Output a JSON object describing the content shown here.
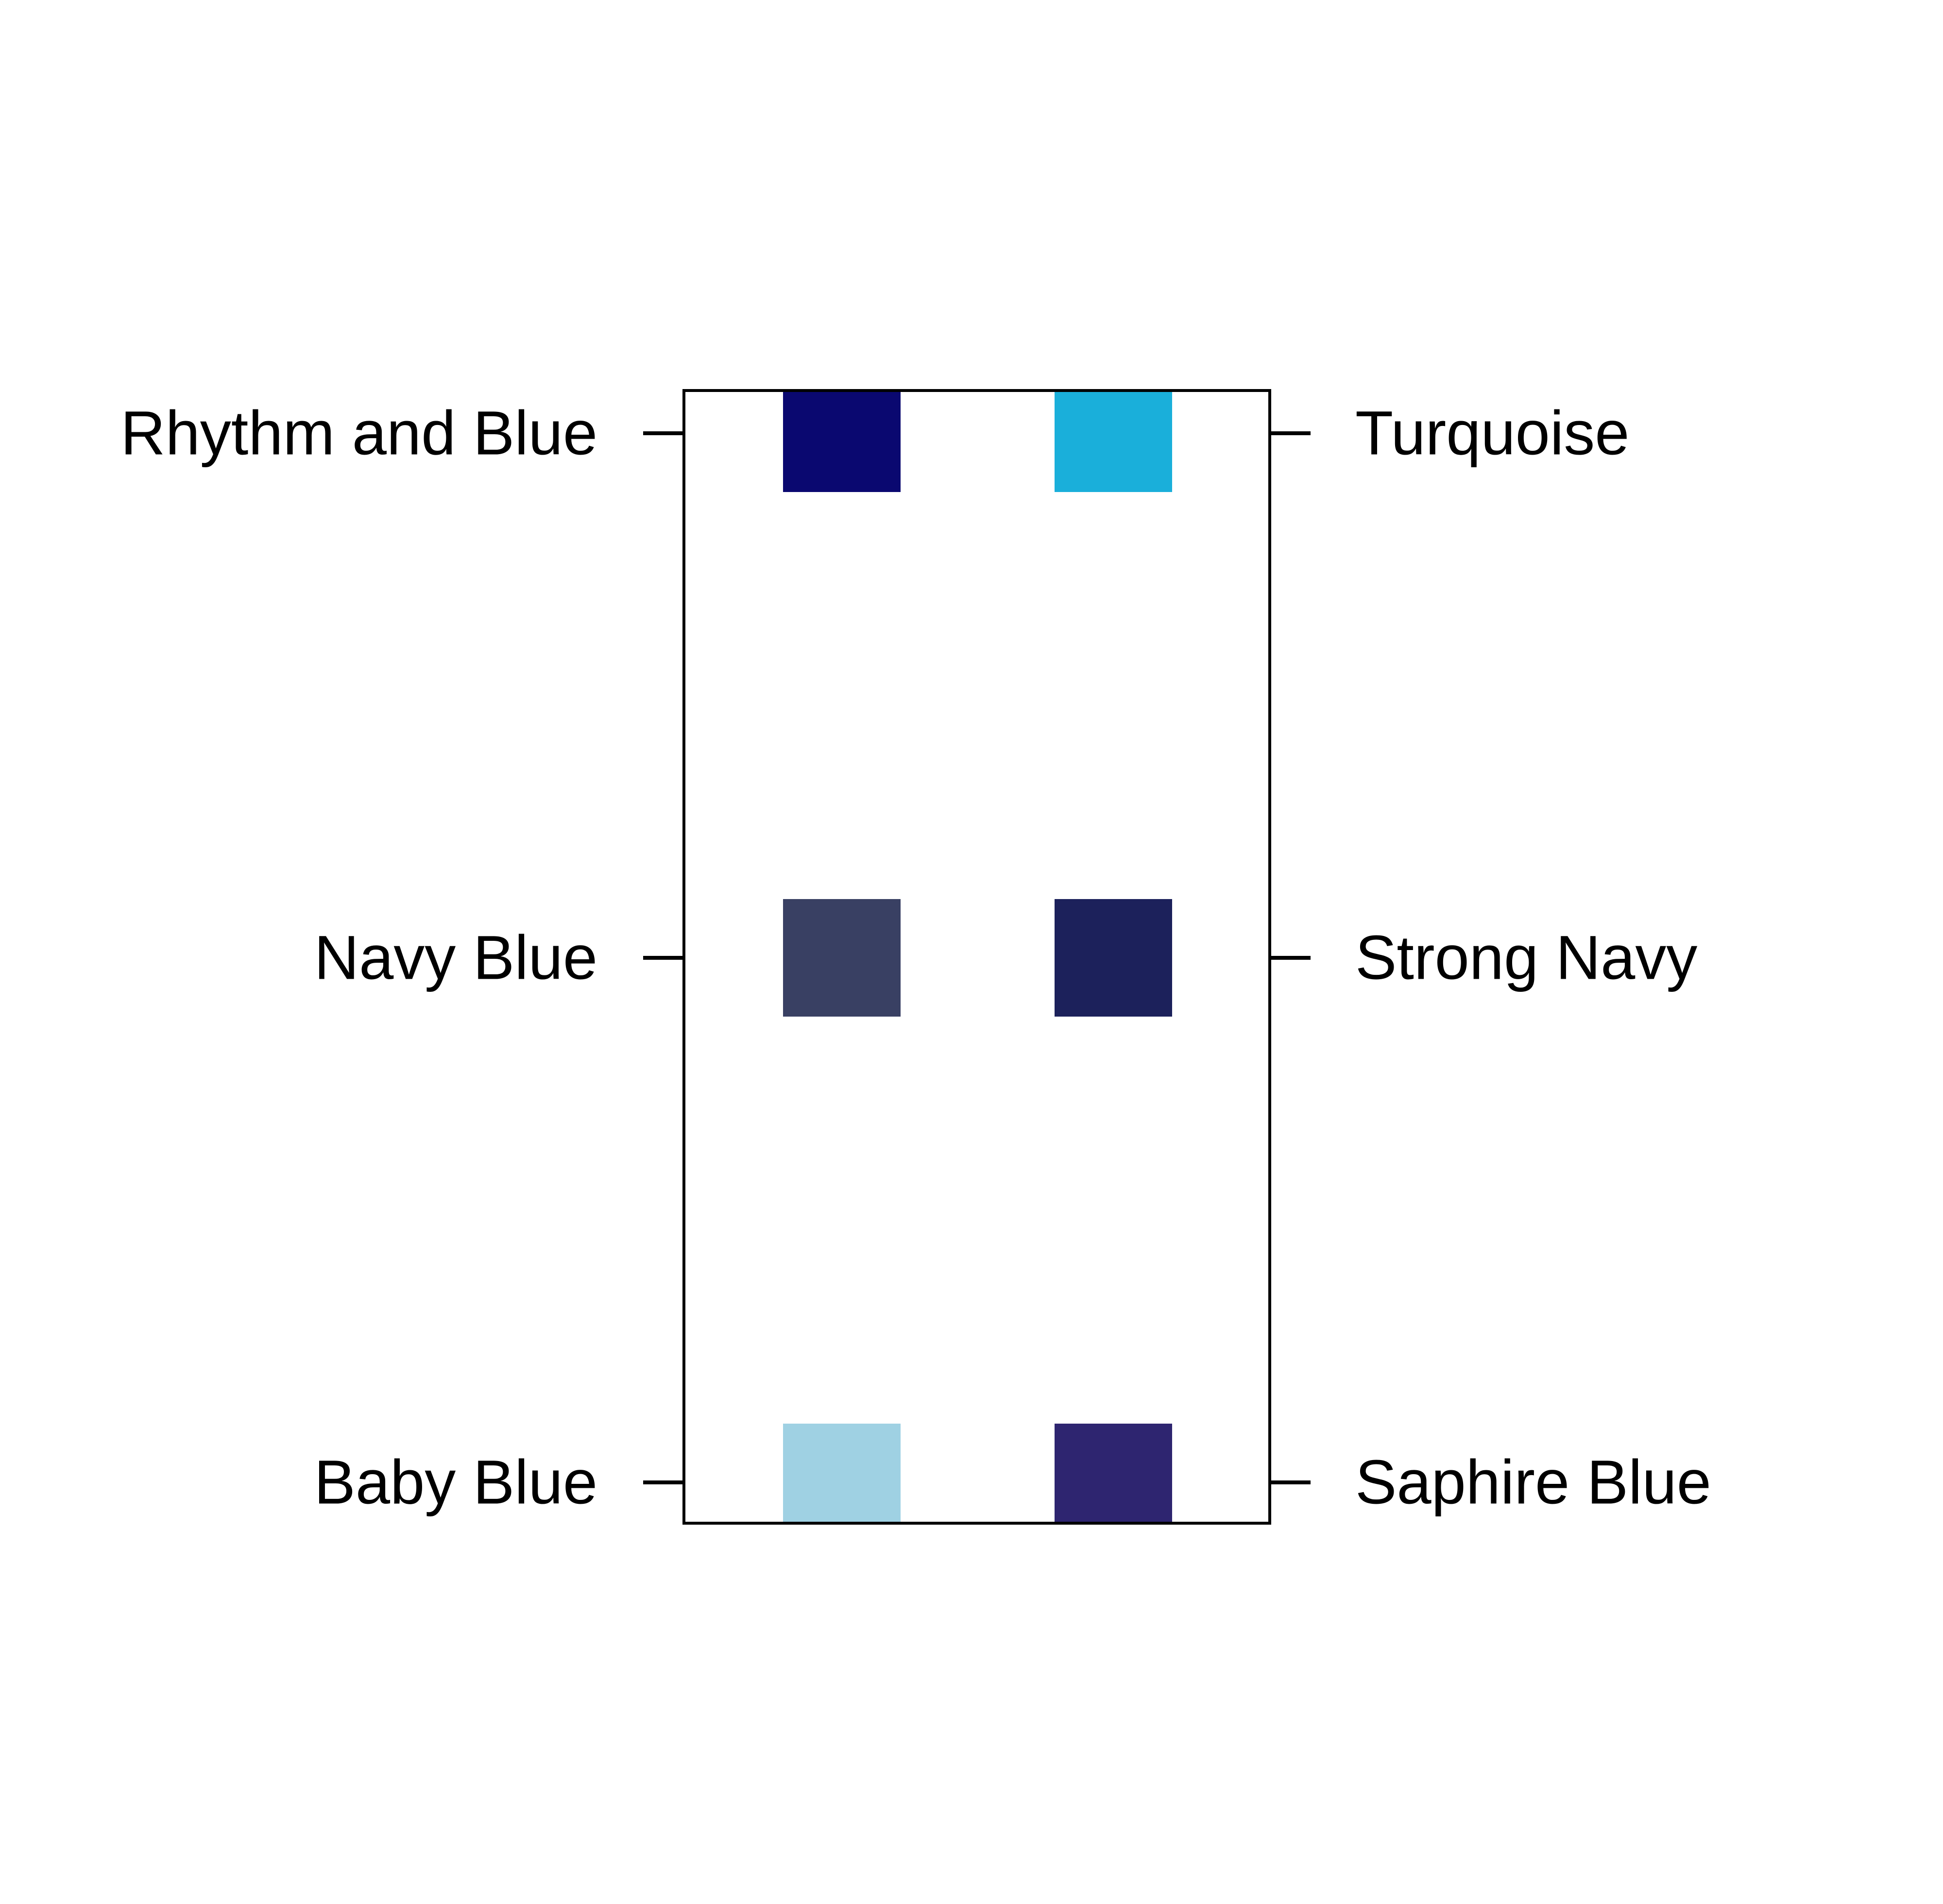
{
  "chart_data": {
    "type": "heatmap",
    "title": "",
    "xlabel": "",
    "ylabel": "",
    "columns": 2,
    "left_axis_labels": [
      "Rhythm and Blue",
      "Navy Blue",
      "Baby Blue"
    ],
    "right_axis_labels": [
      "Turquoise",
      "Strong Navy",
      "Saphire Blue"
    ],
    "cells": [
      {
        "row": 0,
        "col": 0,
        "color": "#0a0870"
      },
      {
        "row": 0,
        "col": 1,
        "color": "#1aafda"
      },
      {
        "row": 1,
        "col": 0,
        "color": "#394063"
      },
      {
        "row": 1,
        "col": 1,
        "color": "#1c215b"
      },
      {
        "row": 2,
        "col": 0,
        "color": "#9fd1e3"
      },
      {
        "row": 2,
        "col": 1,
        "color": "#2e2570"
      }
    ],
    "grid": false,
    "legend": "none"
  }
}
